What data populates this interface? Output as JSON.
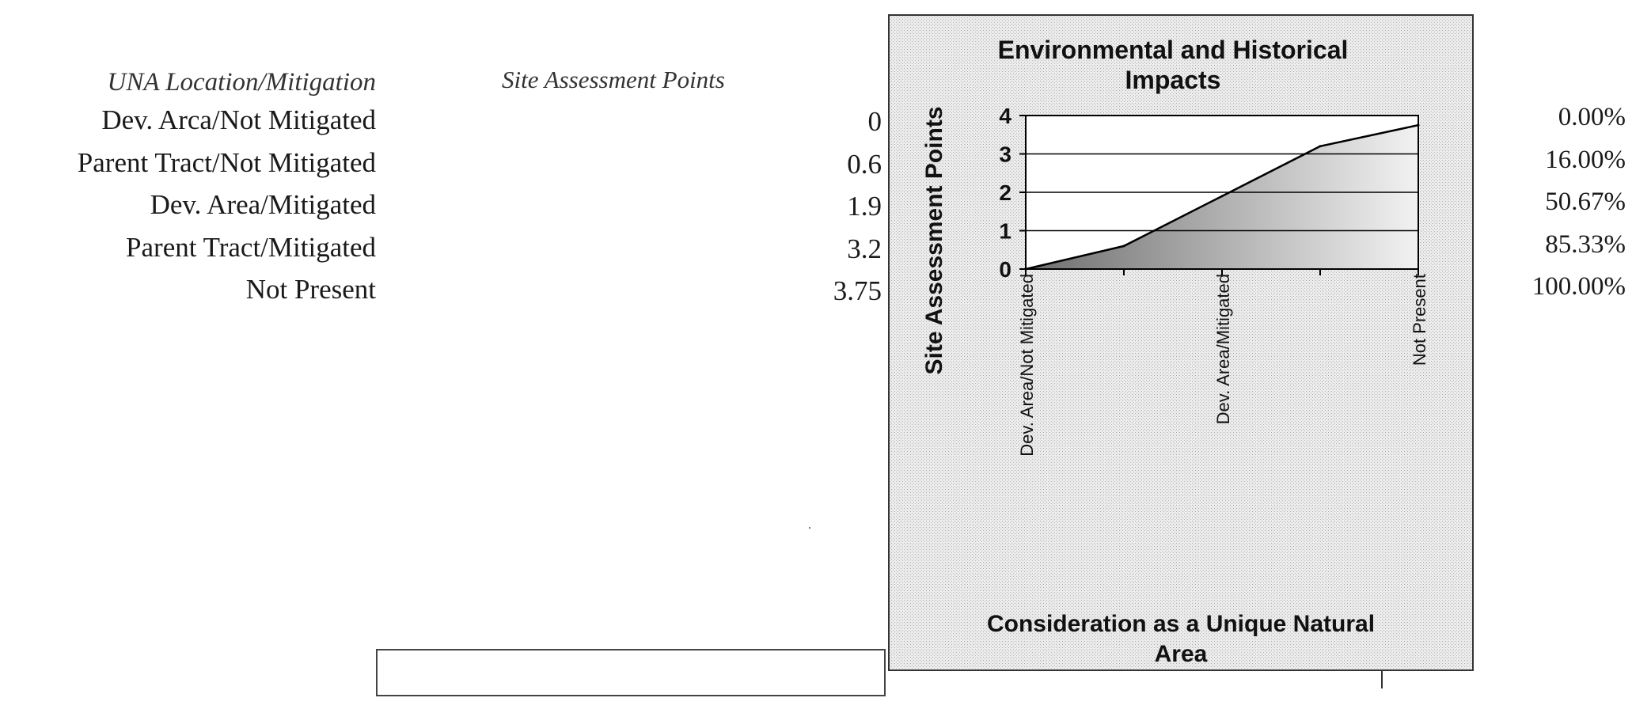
{
  "table": {
    "header_location": "UNA Location/Mitigation",
    "header_points": "Site Assessment Points",
    "rows": [
      {
        "label": "Dev. Arca/Not Mitigated",
        "points": "0",
        "percent": "0.00%"
      },
      {
        "label": "Parent Tract/Not Mitigated",
        "points": "0.6",
        "percent": "16.00%"
      },
      {
        "label": "Dev. Area/Mitigated",
        "points": "1.9",
        "percent": "50.67%"
      },
      {
        "label": "Parent Tract/Mitigated",
        "points": "3.2",
        "percent": "85.33%"
      },
      {
        "label": "Not Present",
        "points": "3.75",
        "percent": "100.00%"
      }
    ]
  },
  "chart_data": {
    "type": "area",
    "title": "Environmental and Historical Impacts",
    "title_lines": [
      "Environmental and Historical",
      "Impacts"
    ],
    "xlabel": "Consideration as a Unique Natural Area",
    "xlabel_lines": [
      "Consideration as a Unique Natural",
      "Area"
    ],
    "ylabel": "Site Assessment Points",
    "categories": [
      "Dev. Area/Not Mitigated",
      "Parent Tract/Not Mitigated",
      "Dev. Area/Mitigated",
      "Parent Tract/Mitigated",
      "Not Present"
    ],
    "category_labels_shown": [
      "Dev. Area/Not Mitigated",
      "",
      "Dev. Area/Mitigated",
      "",
      "Not Present"
    ],
    "values": [
      0,
      0.6,
      1.9,
      3.2,
      3.75
    ],
    "ylim": [
      0,
      4
    ],
    "yticks": [
      "0",
      "1",
      "2",
      "3",
      "4"
    ],
    "grid": true,
    "legend": "none",
    "colors": {
      "fill_dark": "#6e6e6e",
      "fill_light": "#f2f2f2",
      "line": "#000000",
      "panel_bg": "#e9e9e9"
    }
  }
}
